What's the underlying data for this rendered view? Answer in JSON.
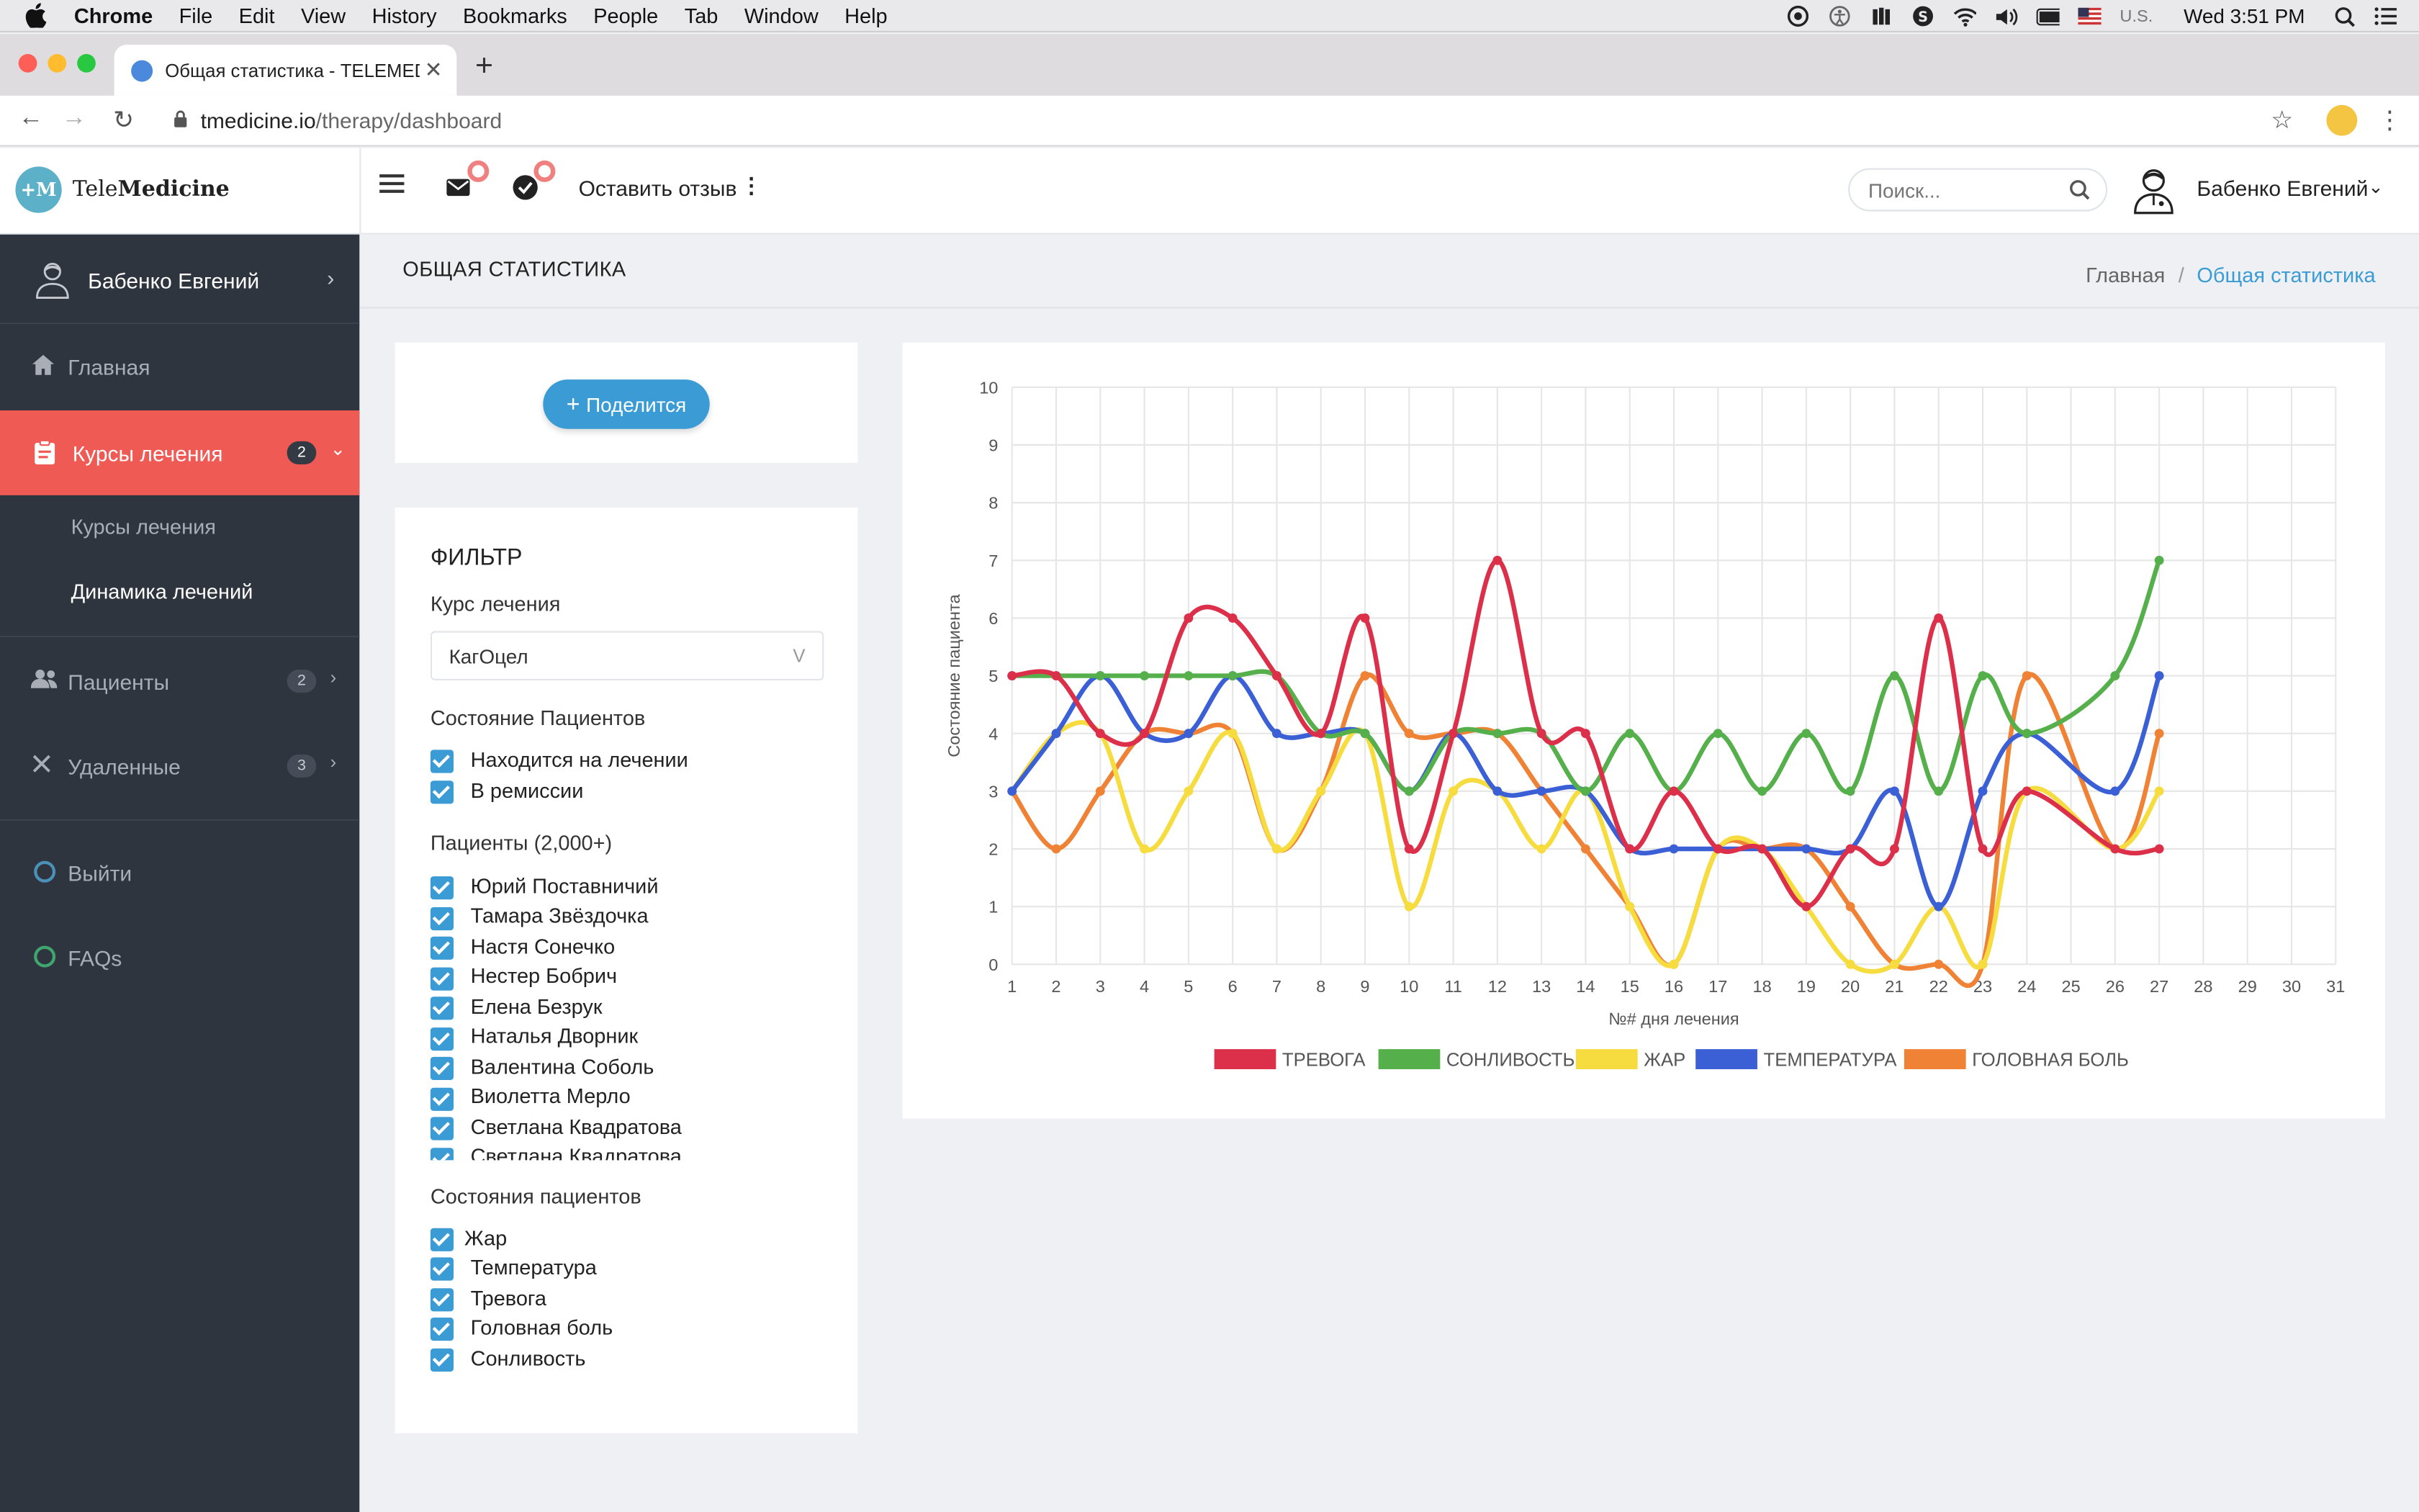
{
  "menubar": {
    "items": [
      "Chrome",
      "File",
      "Edit",
      "View",
      "History",
      "Bookmarks",
      "People",
      "Tab",
      "Window",
      "Help"
    ],
    "input_source": "U.S.",
    "clock": "Wed 3:51 PM"
  },
  "browser": {
    "tab_title": "Общая статистика - TELEMEDICINE",
    "url_host": "tmedicine.io",
    "url_path": "/therapy/dashboard"
  },
  "app": {
    "logo_mark": "+M",
    "logo_light": "Tele",
    "logo_bold": "Medicine",
    "feedback": "Оставить отзыв",
    "search_placeholder": "Поиск...",
    "user_name": "Бабенко Евгений"
  },
  "sidebar": {
    "user_name": "Бабенко Евгений",
    "home": "Главная",
    "courses": "Курсы лечения",
    "courses_badge": "2",
    "sub_courses": "Курсы лечения",
    "sub_dynamics": "Динамика лечений",
    "patients": "Пациенты",
    "patients_badge": "2",
    "deleted": "Удаленные",
    "deleted_badge": "3",
    "logout": "Выйти",
    "faqs": "FAQs"
  },
  "page": {
    "title": "ОБЩАЯ СТАТИСТИКА",
    "breadcrumb_home": "Главная",
    "breadcrumb_sep": "/",
    "breadcrumb_current": "Общая статистика",
    "share": "Поделится"
  },
  "filter": {
    "title": "ФИЛЬТР",
    "course_label": "Курс лечения",
    "course_value": "КагОцел",
    "status_label": "Состояние Пациентов",
    "statuses": [
      "Находится на лечении",
      "В ремиссии"
    ],
    "patients_label": "Пациенты (2,000+)",
    "patients": [
      "Юрий Поставничий",
      "Тамара Звёздочка",
      "Настя Сонечко",
      "Нестер Бобрич",
      "Елена Безрук",
      "Наталья Дворник",
      "Валентина Соболь",
      "Виолетта Мерло",
      "Светлана Квадратова",
      "Светлана Квадратова"
    ],
    "conditions_label": "Состояния пациентов",
    "conditions": [
      "Жар",
      "Температура",
      "Тревога",
      "Головная боль",
      "Сонливость"
    ]
  },
  "chart_data": {
    "type": "line",
    "xlabel": "№# дня лечения",
    "ylabel": "Состояние пациента",
    "ylim": [
      0,
      10
    ],
    "xlim": [
      1,
      31
    ],
    "grid": true,
    "legend": "bottom",
    "x": [
      1,
      2,
      3,
      4,
      5,
      6,
      7,
      8,
      9,
      10,
      11,
      12,
      13,
      14,
      15,
      16,
      17,
      18,
      19,
      20,
      21,
      22,
      23,
      24,
      25,
      26,
      27
    ],
    "series": [
      {
        "name": "ТРЕВОГА",
        "color": "#dc2f4a",
        "values": [
          5,
          5,
          4,
          4,
          6,
          6,
          5,
          4,
          6,
          2,
          4,
          7,
          4,
          4,
          2,
          3,
          2,
          2,
          1,
          2,
          2,
          6,
          2,
          3,
          null,
          2,
          2
        ]
      },
      {
        "name": "СОНЛИВОСТЬ",
        "color": "#55b04c",
        "values": [
          5,
          5,
          5,
          5,
          5,
          5,
          5,
          4,
          4,
          3,
          4,
          4,
          4,
          3,
          4,
          3,
          4,
          3,
          4,
          3,
          5,
          3,
          5,
          4,
          null,
          5,
          7
        ]
      },
      {
        "name": "ЖАР",
        "color": "#f6dc3e",
        "values": [
          3,
          4,
          4,
          2,
          3,
          4,
          2,
          3,
          4,
          1,
          3,
          3,
          2,
          3,
          1,
          0,
          2,
          2,
          1,
          0,
          0,
          1,
          0,
          3,
          null,
          2,
          3
        ]
      },
      {
        "name": "ТЕМПЕРАТУРА",
        "color": "#3b5fd4",
        "values": [
          3,
          4,
          5,
          4,
          4,
          5,
          4,
          4,
          4,
          3,
          4,
          3,
          3,
          3,
          2,
          2,
          2,
          2,
          2,
          2,
          3,
          1,
          3,
          4,
          null,
          3,
          5
        ]
      },
      {
        "name": "ГОЛОВНАЯ БОЛЬ",
        "color": "#ef8235",
        "values": [
          3,
          2,
          3,
          4,
          4,
          4,
          2,
          3,
          5,
          4,
          4,
          4,
          3,
          2,
          1,
          0,
          2,
          2,
          2,
          1,
          0,
          0,
          0,
          5,
          null,
          2,
          4
        ]
      }
    ]
  }
}
